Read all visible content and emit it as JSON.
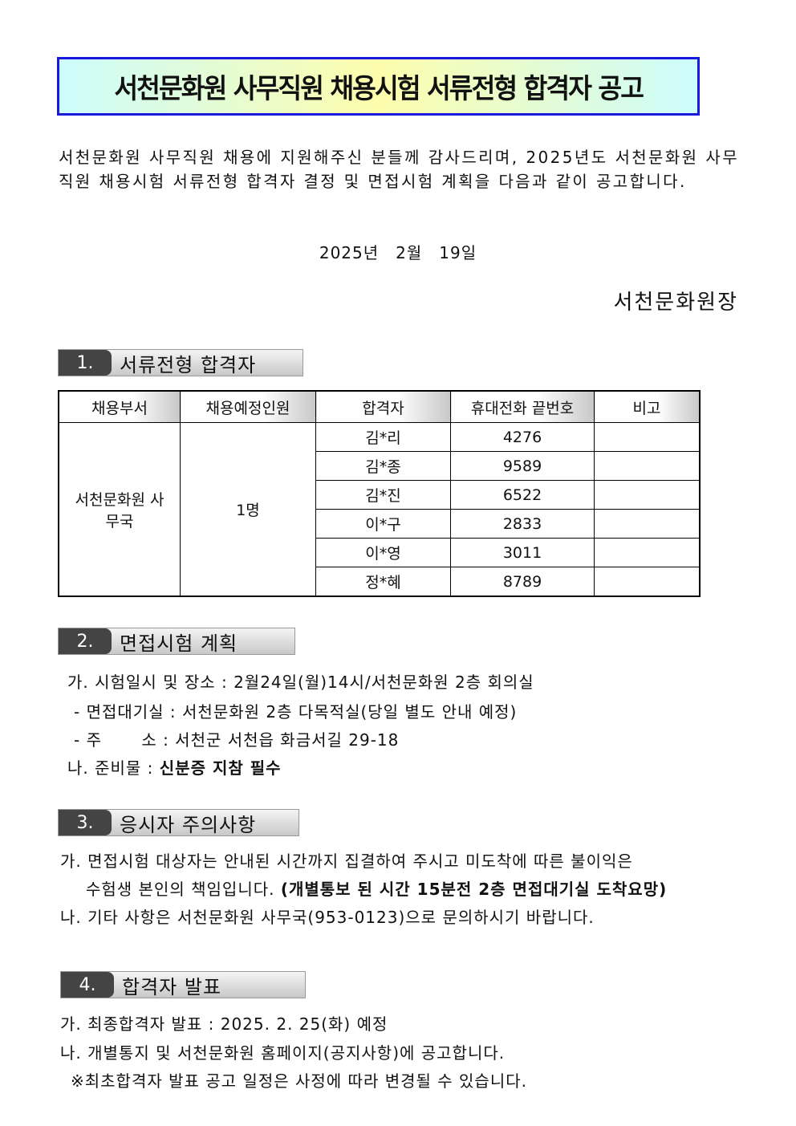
{
  "title": "서천문화원 사무직원 채용시험 서류전형 합격자 공고",
  "intro": "서천문화원 사무직원 채용에 지원해주신 분들께 감사드리며, 2025년도 서천문화원 사무직원 채용시험 서류전형 합격자 결정 및 면접시험 계획을 다음과 같이 공고합니다.",
  "date": "2025년　2월　19일",
  "signer": "서천문화원장",
  "sections": [
    {
      "num": "1.",
      "label": "서류전형 합격자"
    },
    {
      "num": "2.",
      "label": "면접시험 계획"
    },
    {
      "num": "3.",
      "label": "응시자 주의사항"
    },
    {
      "num": "4.",
      "label": "합격자 발표"
    }
  ],
  "table": {
    "headers": [
      "채용부서",
      "채용예정인원",
      "합격자",
      "휴대전화 끝번호",
      "비고"
    ],
    "dept": "서천문화원 사무국",
    "count": "1명",
    "rows": [
      {
        "name": "김*리",
        "phone": "4276",
        "note": ""
      },
      {
        "name": "김*종",
        "phone": "9589",
        "note": ""
      },
      {
        "name": "김*진",
        "phone": "6522",
        "note": ""
      },
      {
        "name": "이*구",
        "phone": "2833",
        "note": ""
      },
      {
        "name": "이*영",
        "phone": "3011",
        "note": ""
      },
      {
        "name": "정*혜",
        "phone": "8789",
        "note": ""
      }
    ]
  },
  "interview": {
    "a": "가. 시험일시 및 장소 : 2월24일(월)14시/서천문화원 2층 회의실",
    "a1": "- 면접대기실 : 서천문화원 2층 다목적실(당일 별도 안내 예정)",
    "a2": "- 주　　 소 : 서천군 서천읍 화금서길 29-18",
    "b_prefix": "나. 준비물 : ",
    "b_bold": "신분증 지참 필수"
  },
  "notice": {
    "a": "가. 면접시험 대상자는 안내된 시간까지 집결하여 주시고 미도착에 따른 불이익은",
    "a2_prefix": "수험생 본인의 책임입니다. ",
    "a2_bold": "(개별통보 된 시간 15분전 2층 면접대기실 도착요망)",
    "b": "나. 기타 사항은 서천문화원 사무국(953-0123)으로 문의하시기 바랍니다."
  },
  "announce": {
    "a": "가. 최종합격자 발표 : 2025. 2. 25(화) 예정",
    "b": "나. 개별통지 및 서천문화원 홈페이지(공지사항)에 공고합니다.",
    "c": "※최초합격자 발표 공고 일정은 사정에 따라 변경될 수 있습니다."
  }
}
